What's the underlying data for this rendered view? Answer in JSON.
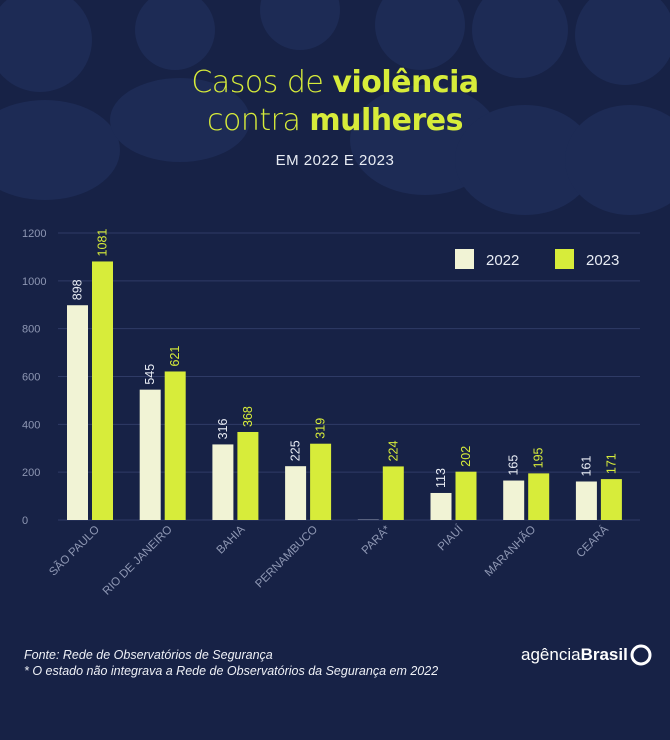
{
  "title": {
    "line1_light": "Casos de ",
    "line1_bold": "violência",
    "line2_light": "contra ",
    "line2_bold": "mulheres"
  },
  "subtitle": "EM 2022 E 2023",
  "footer": {
    "source": "Fonte: Rede de Observatórios de Segurança",
    "note": "* O estado não integrava a Rede de Observatórios da Segurança em 2022"
  },
  "brand": {
    "light": "agência",
    "bold": "Brasil"
  },
  "colors": {
    "background": "#172246",
    "accent": "#d7ec3a",
    "bar_2022": "#f1f3d5",
    "bar_2023": "#d7ec3a",
    "grid": "#2f3b66",
    "axis_text": "#8e97b3"
  },
  "chart_data": {
    "type": "bar",
    "title": "Casos de violência contra mulheres",
    "subtitle": "EM 2022 E 2023",
    "categories": [
      "SÃO PAULO",
      "RIO DE JANEIRO",
      "BAHIA",
      "PERNAMBUCO",
      "PARÁ*",
      "PIAUÍ",
      "MARANHÃO",
      "CEARÁ"
    ],
    "series": [
      {
        "name": "2022",
        "values": [
          898,
          545,
          316,
          225,
          null,
          113,
          165,
          161
        ]
      },
      {
        "name": "2023",
        "values": [
          1081,
          621,
          368,
          319,
          224,
          202,
          195,
          171
        ]
      }
    ],
    "yticks": [
      0,
      200,
      400,
      600,
      800,
      1000,
      1200
    ],
    "ylim": [
      0,
      1200
    ],
    "grid": true,
    "legend_position": "top-right",
    "xlabel": "",
    "ylabel": ""
  }
}
